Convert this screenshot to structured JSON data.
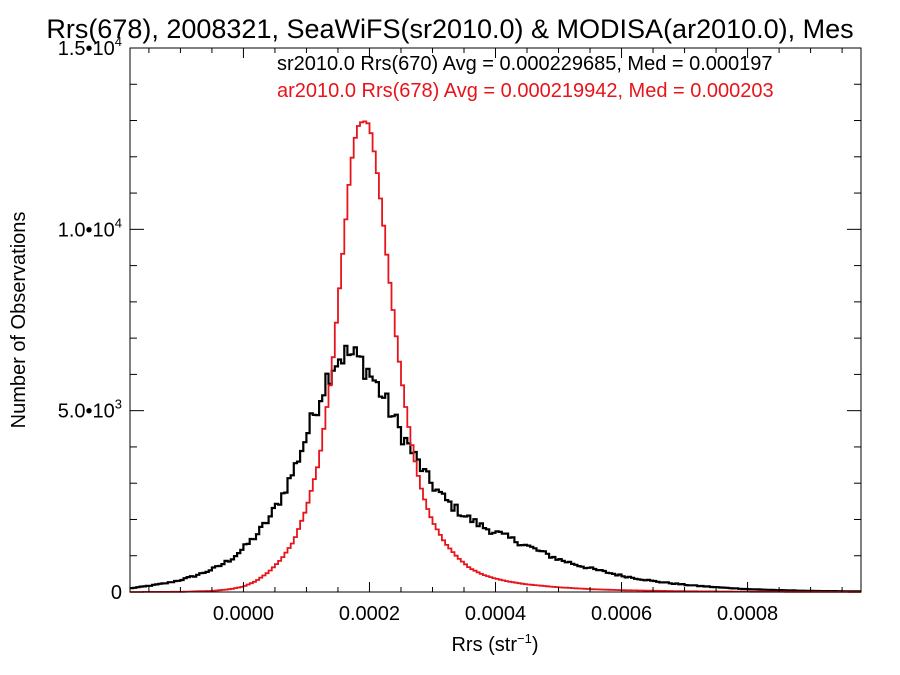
{
  "chart_data": {
    "type": "line",
    "title": "Rrs(678), 2008321, SeaWiFS(sr2010.0) & MODISA(ar2010.0), Mes",
    "xlabel_main": "Rrs (str",
    "xlabel_sup": "−1",
    "xlabel_close": ")",
    "ylabel": "Number of Observations",
    "xlim": [
      -0.00018,
      0.00098
    ],
    "ylim": [
      0,
      15000
    ],
    "grid": false,
    "legend_position": "top-right",
    "x_ticks": [
      {
        "value": 0.0,
        "label": "0.0000"
      },
      {
        "value": 0.0002,
        "label": "0.0002"
      },
      {
        "value": 0.0004,
        "label": "0.0004"
      },
      {
        "value": 0.0006,
        "label": "0.0006"
      },
      {
        "value": 0.0008,
        "label": "0.0008"
      }
    ],
    "y_ticks": [
      {
        "value": 0,
        "mant": "0",
        "exp": ""
      },
      {
        "value": 5000,
        "mant": "5.0•10",
        "exp": "3"
      },
      {
        "value": 10000,
        "mant": "1.0•10",
        "exp": "4"
      },
      {
        "value": 15000,
        "mant": "1.5•10",
        "exp": "4"
      }
    ],
    "annotations": [
      {
        "text": "sr2010.0 Rrs(670) Avg = 0.000229685, Med = 0.000197",
        "color": "#000000"
      },
      {
        "text": "ar2010.0 Rrs(678) Avg = 0.000219942, Med = 0.000203",
        "color": "#e8141b"
      }
    ],
    "series": [
      {
        "color": "#000000",
        "x": [
          -0.00018,
          -0.00015,
          -0.00012,
          -0.0001,
          -8e-05,
          -6e-05,
          -4e-05,
          -2e-05,
          0.0,
          2e-05,
          4e-05,
          6e-05,
          8e-05,
          0.0001,
          0.00012,
          0.00013,
          0.00014,
          0.00015,
          0.00016,
          0.00017,
          0.00018,
          0.00019,
          0.0002,
          0.00021,
          0.00022,
          0.00023,
          0.00024,
          0.00025,
          0.00026,
          0.00027,
          0.00028,
          0.00029,
          0.0003,
          0.00032,
          0.00034,
          0.00036,
          0.00038,
          0.0004,
          0.00042,
          0.00044,
          0.00046,
          0.00048,
          0.0005,
          0.00055,
          0.0006,
          0.00065,
          0.0007,
          0.00075,
          0.0008,
          0.00085,
          0.0009,
          0.00095,
          0.00098
        ],
        "y": [
          100,
          170,
          250,
          330,
          430,
          550,
          700,
          900,
          1200,
          1550,
          2000,
          2600,
          3350,
          4300,
          5300,
          5800,
          6200,
          6450,
          6550,
          6550,
          6450,
          6300,
          6050,
          5750,
          5450,
          5100,
          4750,
          4400,
          4100,
          3800,
          3500,
          3200,
          2950,
          2550,
          2250,
          2000,
          1800,
          1650,
          1500,
          1350,
          1200,
          1050,
          900,
          650,
          450,
          300,
          200,
          130,
          80,
          50,
          30,
          20,
          15
        ]
      },
      {
        "color": "#e8141b",
        "x": [
          -0.00018,
          -0.0001,
          -5e-05,
          -2e-05,
          0.0,
          2e-05,
          4e-05,
          6e-05,
          8e-05,
          0.0001,
          0.00012,
          0.00014,
          0.00015,
          0.00016,
          0.00017,
          0.00018,
          0.00019,
          0.0002,
          0.00021,
          0.00022,
          0.00023,
          0.00024,
          0.00025,
          0.00026,
          0.00027,
          0.00028,
          0.00029,
          0.0003,
          0.00032,
          0.00034,
          0.00036,
          0.00038,
          0.0004,
          0.00042,
          0.00045,
          0.0005,
          0.00055,
          0.0006,
          0.0007,
          0.0008,
          0.0009,
          0.00098
        ],
        "y": [
          0,
          5,
          30,
          80,
          150,
          300,
          550,
          900,
          1400,
          2300,
          3600,
          6000,
          7900,
          9800,
          11700,
          12800,
          13000,
          12900,
          11900,
          10500,
          8900,
          7400,
          6000,
          4800,
          3800,
          3000,
          2400,
          1950,
          1350,
          950,
          650,
          480,
          370,
          290,
          210,
          130,
          80,
          50,
          20,
          10,
          5,
          0
        ]
      }
    ]
  }
}
